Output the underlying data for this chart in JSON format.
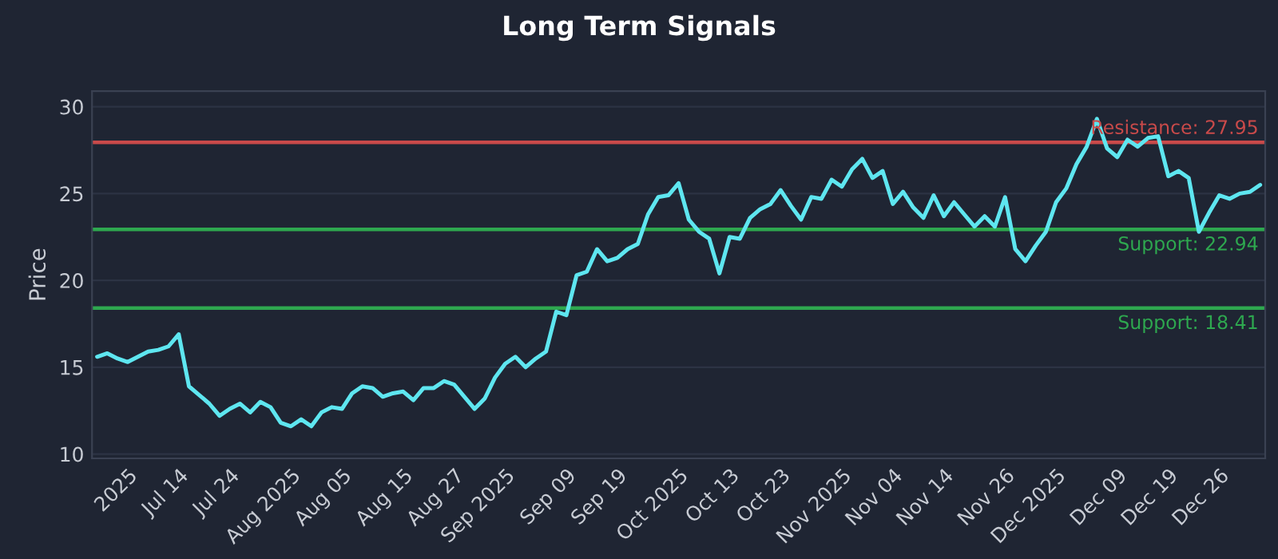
{
  "chart_data": {
    "type": "line",
    "title": "Long Term Signals",
    "ylabel": "Price",
    "categories": [
      null,
      null,
      null,
      "2025",
      null,
      null,
      null,
      null,
      "Jul 14",
      null,
      null,
      null,
      null,
      "Jul 24",
      null,
      null,
      null,
      null,
      null,
      "Aug 2025",
      null,
      null,
      null,
      null,
      "Aug 05",
      null,
      null,
      null,
      null,
      null,
      "Aug 15",
      null,
      null,
      null,
      null,
      "Aug 27",
      null,
      null,
      null,
      null,
      "Sep 2025",
      null,
      null,
      null,
      null,
      null,
      "Sep 09",
      null,
      null,
      null,
      null,
      "Sep 19",
      null,
      null,
      null,
      null,
      null,
      "Oct 2025",
      null,
      null,
      null,
      null,
      "Oct 13",
      null,
      null,
      null,
      null,
      "Oct 23",
      null,
      null,
      null,
      null,
      null,
      "Nov 2025",
      null,
      null,
      null,
      null,
      "Nov 04",
      null,
      null,
      null,
      null,
      "Nov 14",
      null,
      null,
      null,
      null,
      null,
      "Nov 26",
      null,
      null,
      null,
      null,
      "Dec 2025",
      null,
      null,
      null,
      null,
      null,
      "Dec 09",
      null,
      null,
      null,
      null,
      "Dec 19",
      null,
      null,
      null,
      null,
      "Dec 26",
      null,
      null,
      null,
      null
    ],
    "series": [
      {
        "color": "#5ee6f0",
        "values": [
          15.6,
          15.8,
          15.5,
          15.3,
          15.6,
          15.9,
          16.0,
          16.2,
          16.9,
          13.9,
          13.4,
          12.9,
          12.2,
          12.6,
          12.9,
          12.4,
          13.0,
          12.7,
          11.8,
          11.6,
          12.0,
          11.6,
          12.4,
          12.7,
          12.6,
          13.5,
          13.9,
          13.8,
          13.3,
          13.5,
          13.6,
          13.1,
          13.8,
          13.8,
          14.2,
          14.0,
          13.3,
          12.6,
          13.2,
          14.4,
          15.2,
          15.6,
          15.0,
          15.5,
          15.9,
          18.2,
          18.0,
          20.3,
          20.5,
          21.8,
          21.1,
          21.3,
          21.8,
          22.1,
          23.8,
          24.8,
          24.9,
          25.6,
          23.5,
          22.8,
          22.4,
          20.4,
          22.5,
          22.4,
          23.6,
          24.1,
          24.4,
          25.2,
          24.3,
          23.5,
          24.8,
          24.7,
          25.8,
          25.4,
          26.4,
          27.0,
          25.9,
          26.3,
          24.4,
          25.1,
          24.2,
          23.6,
          24.9,
          23.7,
          24.5,
          23.8,
          23.1,
          23.7,
          23.1,
          24.8,
          21.8,
          21.1,
          22.0,
          22.8,
          24.5,
          25.3,
          26.7,
          27.7,
          29.3,
          27.6,
          27.1,
          28.1,
          27.7,
          28.2,
          28.3,
          26.0,
          26.3,
          25.9,
          22.8,
          23.9,
          24.9,
          24.7,
          25.0,
          25.1,
          25.5
        ]
      }
    ],
    "ylim": [
      9.75,
      30.9
    ],
    "yticks": [
      10,
      15,
      20,
      25,
      30
    ],
    "grid": "y",
    "marker": "none",
    "line_style": "solid",
    "ref_lines": [
      {
        "axis": "y",
        "value": 27.95,
        "label": "Resistance: 27.95",
        "color": "#c94a4a"
      },
      {
        "axis": "y",
        "value": 22.94,
        "label": "Support: 22.94",
        "color": "#2ea84f"
      },
      {
        "axis": "y",
        "value": 18.41,
        "label": "Support: 18.41",
        "color": "#2ea84f"
      }
    ]
  }
}
